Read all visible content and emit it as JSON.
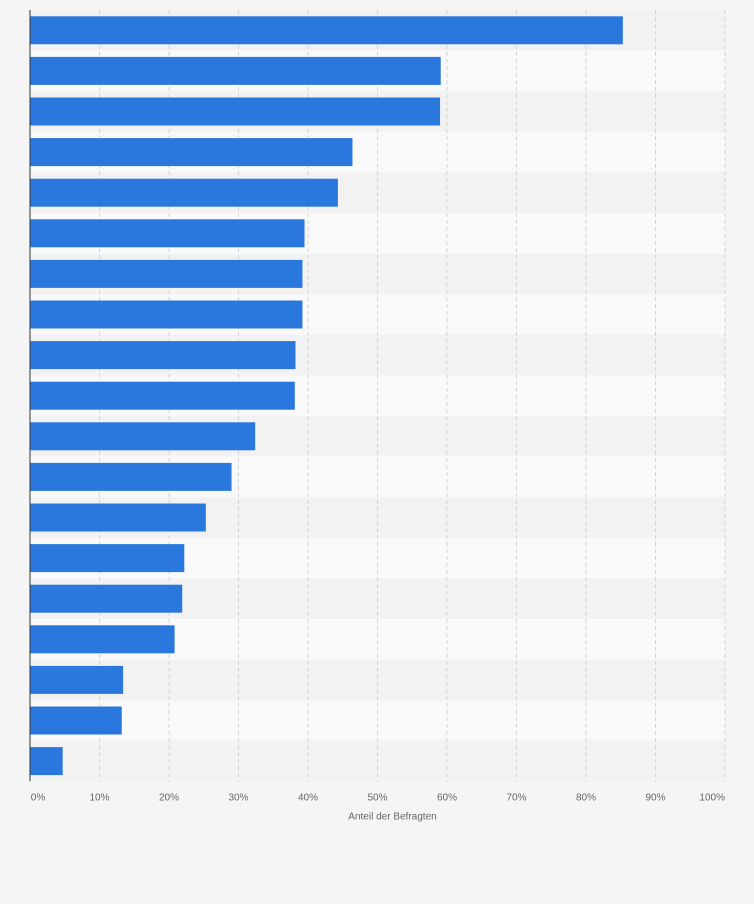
{
  "chart_data": {
    "type": "bar",
    "orientation": "horizontal",
    "title": "",
    "xlabel": "Anteil der Befragten",
    "ylabel": "",
    "xlim": [
      0,
      100
    ],
    "tick_values": [
      0,
      10,
      20,
      30,
      40,
      50,
      60,
      70,
      80,
      90,
      100
    ],
    "tick_labels": [
      "0%",
      "10%",
      "20%",
      "30%",
      "40%",
      "50%",
      "60%",
      "70%",
      "80%",
      "90%",
      "100%"
    ],
    "grid": true,
    "legend": "none",
    "bar_color": "#2a77de",
    "categories": [
      "",
      "",
      "",
      "",
      "",
      "",
      "",
      "",
      "",
      "",
      "",
      "",
      "",
      "",
      "",
      "",
      "",
      "",
      ""
    ],
    "values": [
      85.3,
      59.1,
      59.0,
      46.4,
      44.3,
      39.5,
      39.2,
      39.2,
      38.2,
      38.1,
      32.4,
      29.0,
      25.3,
      22.2,
      21.9,
      20.8,
      13.4,
      13.2,
      4.7
    ]
  }
}
